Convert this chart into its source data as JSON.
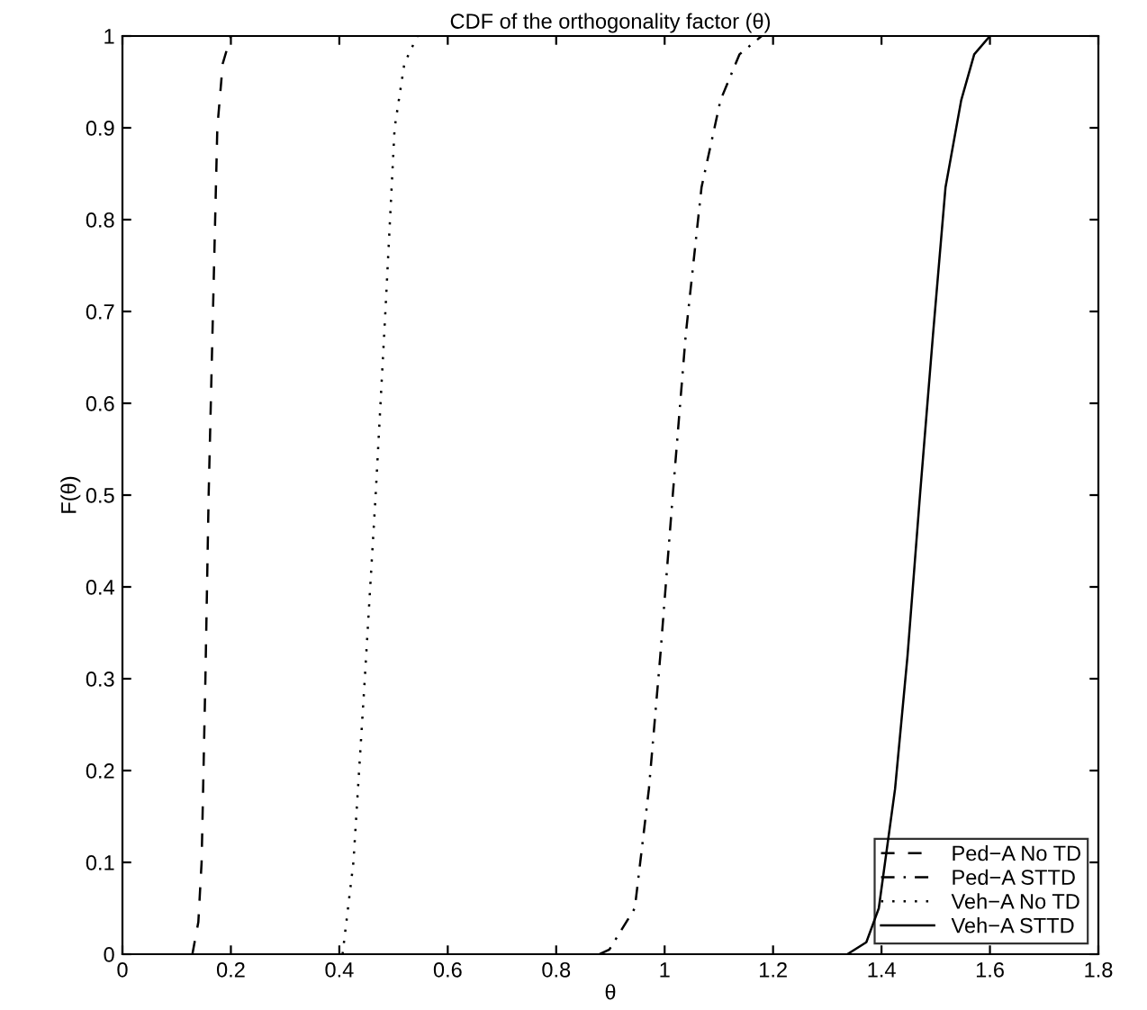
{
  "chart_data": {
    "type": "line",
    "title": "CDF of the orthogonality factor (θ)",
    "xlabel": "θ",
    "ylabel": "F(θ)",
    "xlim": [
      0,
      1.8
    ],
    "ylim": [
      0,
      1
    ],
    "xticks": [
      0,
      0.2,
      0.4,
      0.6,
      0.8,
      1,
      1.2,
      1.4,
      1.6,
      1.8
    ],
    "yticks": [
      0,
      0.1,
      0.2,
      0.3,
      0.4,
      0.5,
      0.6,
      0.7,
      0.8,
      0.9,
      1
    ],
    "grid": false,
    "legend": "bottom right",
    "series": [
      {
        "name": "Ped−A No TD",
        "color": "#000000",
        "line_style": "dashed",
        "x": [
          0.129,
          0.14,
          0.146,
          0.153,
          0.159,
          0.167,
          0.175,
          0.185,
          0.2
        ],
        "values": [
          0,
          0.035,
          0.1,
          0.3,
          0.5,
          0.7,
          0.9,
          0.97,
          1
        ]
      },
      {
        "name": "Ped−A STTD",
        "color": "#000000",
        "line_style": "dashdot",
        "x": [
          0.88,
          0.898,
          0.945,
          0.971,
          0.992,
          1.015,
          1.039,
          1.068,
          1.103,
          1.138,
          1.179
        ],
        "values": [
          0,
          0.005,
          0.05,
          0.18,
          0.325,
          0.5,
          0.675,
          0.835,
          0.93,
          0.98,
          1
        ]
      },
      {
        "name": "Veh−A No TD",
        "color": "#000000",
        "line_style": "dotted",
        "x": [
          0.406,
          0.426,
          0.447,
          0.467,
          0.485,
          0.502,
          0.52,
          0.544
        ],
        "values": [
          0,
          0.1,
          0.3,
          0.5,
          0.7,
          0.9,
          0.97,
          1
        ]
      },
      {
        "name": "Veh−A STTD",
        "color": "#000000",
        "line_style": "solid",
        "x": [
          1.337,
          1.372,
          1.395,
          1.425,
          1.448,
          1.471,
          1.495,
          1.518,
          1.547,
          1.571,
          1.6
        ],
        "values": [
          0,
          0.013,
          0.05,
          0.18,
          0.325,
          0.5,
          0.675,
          0.835,
          0.93,
          0.98,
          1
        ]
      }
    ]
  }
}
